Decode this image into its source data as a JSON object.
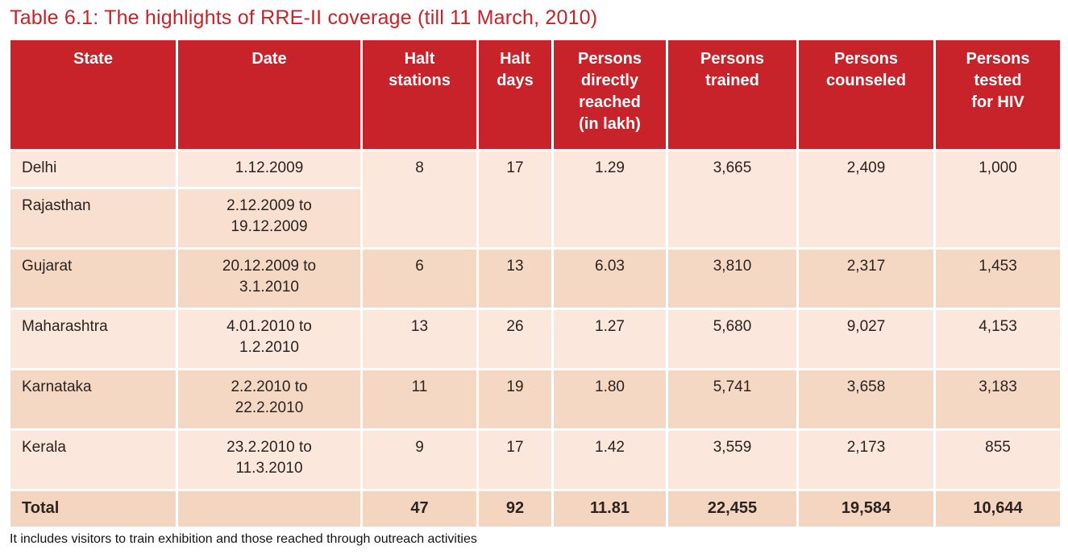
{
  "title": "Table 6.1: The highlights of RRE-II coverage (till 11 March, 2010)",
  "note": "It includes visitors to train exhibition and those reached through outreach activities",
  "colors": {
    "header_bg": "#c8232b",
    "title_text": "#cb2027",
    "row_light": "#fbe7dc",
    "row_medium": "#f8dfd0",
    "row_dark": "#f5d8c3",
    "total_row": "#f4d5bf"
  },
  "chart_data": {
    "type": "table",
    "headers": {
      "state": "State",
      "date": "Date",
      "halt_stations": "Halt\nstations",
      "halt_days": "Halt\ndays",
      "reached": "Persons\ndirectly\nreached\n(in lakh)",
      "trained": "Persons\ntrained",
      "counseled": "Persons\ncounseled",
      "tested": "Persons\ntested\nfor HIV"
    },
    "rows": [
      {
        "state": "Delhi",
        "date": "1.12.2009",
        "halt_stations": "8",
        "halt_days": "17",
        "reached": "1.29",
        "trained": "3,665",
        "counseled": "2,409",
        "tested": "1,000"
      },
      {
        "state": "Rajasthan",
        "date": "2.12.2009 to\n19.12.2009"
      },
      {
        "state": "Gujarat",
        "date": "20.12.2009 to\n3.1.2010",
        "halt_stations": "6",
        "halt_days": "13",
        "reached": "6.03",
        "trained": "3,810",
        "counseled": "2,317",
        "tested": "1,453"
      },
      {
        "state": "Maharashtra",
        "date": "4.01.2010 to\n1.2.2010",
        "halt_stations": "13",
        "halt_days": "26",
        "reached": "1.27",
        "trained": "5,680",
        "counseled": "9,027",
        "tested": "4,153"
      },
      {
        "state": "Karnataka",
        "date": "2.2.2010 to\n22.2.2010",
        "halt_stations": "11",
        "halt_days": "19",
        "reached": "1.80",
        "trained": "5,741",
        "counseled": "3,658",
        "tested": "3,183"
      },
      {
        "state": "Kerala",
        "date": "23.2.2010 to\n11.3.2010",
        "halt_stations": "9",
        "halt_days": "17",
        "reached": "1.42",
        "trained": "3,559",
        "counseled": "2,173",
        "tested": "855"
      },
      {
        "state": "Total",
        "date": "",
        "halt_stations": "47",
        "halt_days": "92",
        "reached": "11.81",
        "trained": "22,455",
        "counseled": "19,584",
        "tested": "10,644"
      }
    ]
  }
}
